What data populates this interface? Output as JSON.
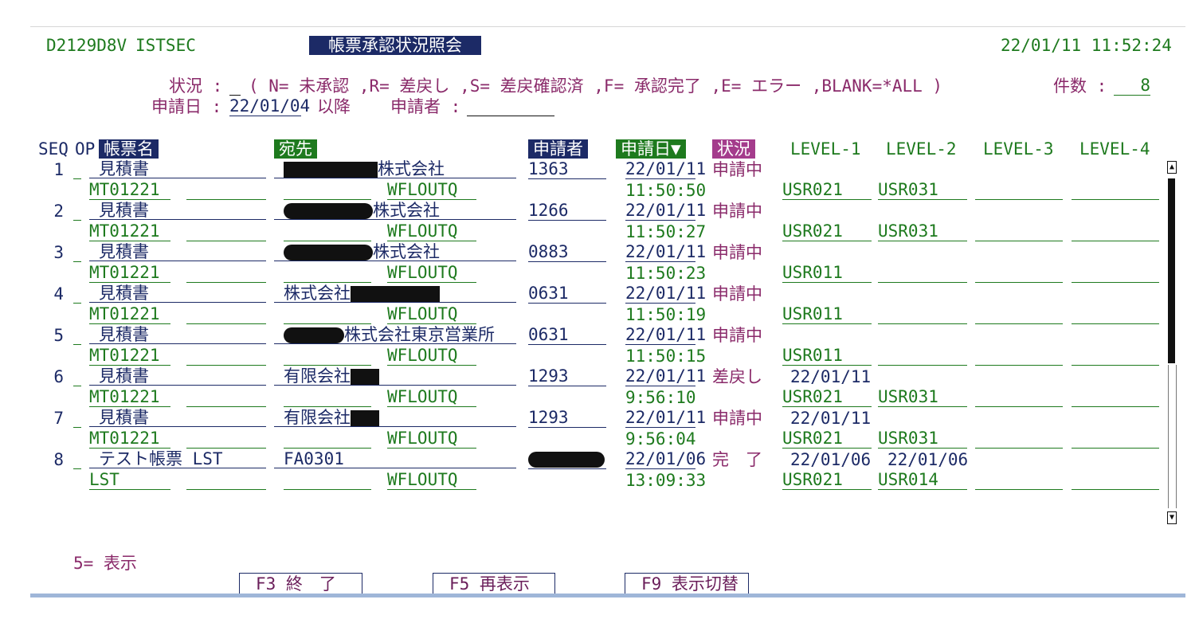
{
  "header": {
    "program_id": "D2129D8V",
    "system_id": "ISTSEC",
    "screen_title": "帳票承認状況照会",
    "datetime": "22/01/11 11:52:24"
  },
  "filters": {
    "status_label": "状況 :",
    "status_value": "_",
    "status_legend": "( N= 未承認 ,R= 差戻し ,S= 差戻確認済 ,F= 承認完了 ,E= エラー ,BLANK=*ALL )",
    "count_label": "件数 :",
    "count_value": "8",
    "date_label": "申請日 :",
    "date_value": "22/01/04",
    "date_suffix": "以降",
    "applicant_label": "申請者 :",
    "applicant_value": ""
  },
  "columns": {
    "seq": "SEQ",
    "op": "OP",
    "form_name": "帳票名",
    "destination": "宛先",
    "applicant": "申請者",
    "apply_date": "申請日▼",
    "status": "状況",
    "level1": "LEVEL-1",
    "level2": "LEVEL-2",
    "level3": "LEVEL-3",
    "level4": "LEVEL-4"
  },
  "rows": [
    {
      "seq": "1",
      "op": "_",
      "form": "見積書",
      "code": "MT01221",
      "dest": "株式会社",
      "queue": "WFLOUTQ",
      "applicant": "1363",
      "date": "22/01/11",
      "time": "11:50:50",
      "status": "申請中",
      "l1_date": "",
      "l1_user": "USR021",
      "l2_date": "",
      "l2_user": "USR031"
    },
    {
      "seq": "2",
      "op": "_",
      "form": "見積書",
      "code": "MT01221",
      "dest": "株式会社",
      "queue": "WFLOUTQ",
      "applicant": "1266",
      "date": "22/01/11",
      "time": "11:50:27",
      "status": "申請中",
      "l1_date": "",
      "l1_user": "USR021",
      "l2_date": "",
      "l2_user": "USR031"
    },
    {
      "seq": "3",
      "op": "_",
      "form": "見積書",
      "code": "MT01221",
      "dest": "株式会社",
      "queue": "WFLOUTQ",
      "applicant": "0883",
      "date": "22/01/11",
      "time": "11:50:23",
      "status": "申請中",
      "l1_date": "",
      "l1_user": "USR011",
      "l2_date": "",
      "l2_user": ""
    },
    {
      "seq": "4",
      "op": "_",
      "form": "見積書",
      "code": "MT01221",
      "dest": "株式会社",
      "queue": "WFLOUTQ",
      "applicant": "0631",
      "date": "22/01/11",
      "time": "11:50:19",
      "status": "申請中",
      "l1_date": "",
      "l1_user": "USR011",
      "l2_date": "",
      "l2_user": ""
    },
    {
      "seq": "5",
      "op": "_",
      "form": "見積書",
      "code": "MT01221",
      "dest": "株式会社東京営業所",
      "queue": "WFLOUTQ",
      "applicant": "0631",
      "date": "22/01/11",
      "time": "11:50:15",
      "status": "申請中",
      "l1_date": "",
      "l1_user": "USR011",
      "l2_date": "",
      "l2_user": ""
    },
    {
      "seq": "6",
      "op": "_",
      "form": "見積書",
      "code": "MT01221",
      "dest": "有限会社",
      "queue": "WFLOUTQ",
      "applicant": "1293",
      "date": "22/01/11",
      "time": "9:56:10",
      "status": "差戻し",
      "l1_date": "22/01/11",
      "l1_user": "USR021",
      "l2_date": "",
      "l2_user": "USR031"
    },
    {
      "seq": "7",
      "op": "_",
      "form": "見積書",
      "code": "MT01221",
      "dest": "有限会社",
      "queue": "WFLOUTQ",
      "applicant": "1293",
      "date": "22/01/11",
      "time": "9:56:04",
      "status": "申請中",
      "l1_date": "22/01/11",
      "l1_user": "USR021",
      "l2_date": "",
      "l2_user": "USR031"
    },
    {
      "seq": "8",
      "op": "_",
      "form": "テスト帳票 LST",
      "code": "LST",
      "dest": "FA0301",
      "queue": "WFLOUTQ",
      "applicant": "",
      "date": "22/01/06",
      "time": "13:09:33",
      "status": "完　了",
      "l1_date": "22/01/06",
      "l1_user": "USR021",
      "l2_date": "22/01/06",
      "l2_user": "USR014"
    }
  ],
  "footer": {
    "option_hint": "5= 表示",
    "f3": "F3 終　了",
    "f5": "F5 再表示",
    "f9": "F9 表示切替"
  }
}
